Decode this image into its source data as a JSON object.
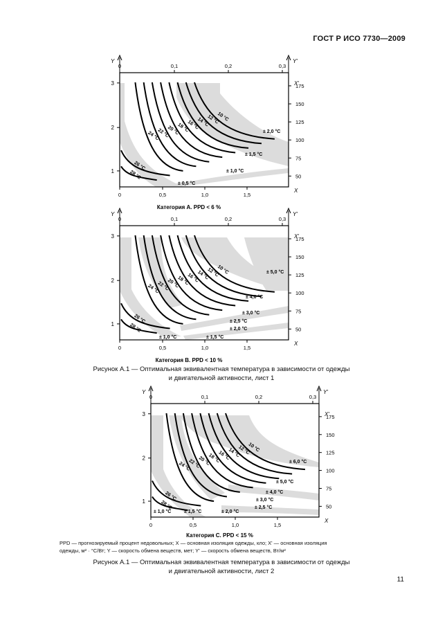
{
  "header": {
    "title": "ГОСТ Р ИСО 7730—2009"
  },
  "axes": {
    "y_label": "Y",
    "y_top_label": "Y'",
    "x_label": "X",
    "x_top_label": "X'",
    "left_ticks": [
      "1",
      "2",
      "3"
    ],
    "bottom_ticks": [
      "0",
      "0,5",
      "1,0",
      "1,5"
    ],
    "bottom_ticks_a": [
      "0",
      "0,5",
      "1,0",
      "1,5"
    ],
    "top_ticks": [
      "0",
      "0,1",
      "0,2",
      "0,3"
    ],
    "right_ticks": [
      "50",
      "75",
      "100",
      "125",
      "150",
      "175"
    ]
  },
  "charts": [
    {
      "category": "Категория A. PPD < 6 %",
      "curves": [
        "28 °C",
        "26 °C",
        "24 °C",
        "22 °C",
        "20 °C",
        "18 °C",
        "16 °C",
        "14 °C",
        "12 °C",
        "10 °C"
      ],
      "tolerances": [
        "± 0,5 °C",
        "± 1,0 °C",
        "± 1,5 °C",
        "± 2,0 °C"
      ]
    },
    {
      "category": "Категория B. PPD < 10 %",
      "curves": [
        "28 °C",
        "26 °C",
        "24 °C",
        "22 °C",
        "20 °C",
        "18 °C",
        "16 °C",
        "14 °C",
        "12 °C",
        "10 °C"
      ],
      "tolerances": [
        "± 1,0 °C",
        "± 1,5 °C",
        "± 2,0 °C",
        "± 2,5 °C",
        "± 3,0 °C",
        "± 4,0 °C",
        "± 5,0 °C"
      ]
    },
    {
      "category": "Категория C. PPD < 15 %",
      "curves": [
        "28 °C",
        "26 °C",
        "24 °C",
        "22 °C",
        "20 °C",
        "18 °C",
        "16 °C",
        "14 °C",
        "12 °C",
        "10 °C"
      ],
      "tolerances": [
        "± 1,0 °C",
        "± 1,5 °C",
        "± 2,0 °C",
        "± 2,5 °C",
        "± 3,0 °C",
        "± 4,0 °C",
        "± 5,0 °C",
        "± 6,0 °C"
      ]
    }
  ],
  "captions": {
    "sheet1": [
      "Рисунок А.1 — Оптимальная эквивалентная температура в зависимости от одежды",
      "и двигательной активности, лист 1"
    ],
    "sheet2": [
      "Рисунок А.1 — Оптимальная эквивалентная температура в зависимости от одежды",
      "и двигательной активности, лист 2"
    ]
  },
  "legend": {
    "line1": "PPD — прогнозируемый процент недовольных; X — основная изоляция одежды, кло; X' — основная изоляция",
    "line2": "одежды, м² · °C/Вт; Y — скорость обмена веществ, мет; Y' — скорость обмена веществ, Вт/м²"
  },
  "page_number": "11"
}
